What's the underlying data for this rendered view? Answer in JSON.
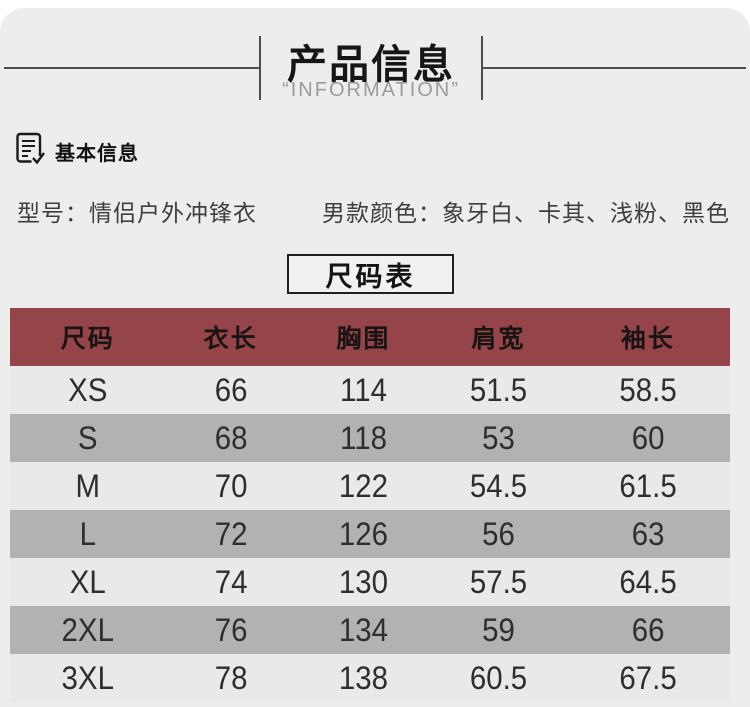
{
  "header": {
    "title": "产品信息",
    "subtitle": "“INFORMATION”"
  },
  "basic_info": {
    "section_title": "基本信息",
    "model_label": "型号：情侣户外冲锋衣",
    "color_label": "男款颜色：象牙白、卡其、浅粉、黑色"
  },
  "size_chart": {
    "title": "尺码表",
    "columns": [
      "尺码",
      "衣长",
      "胸围",
      "肩宽",
      "袖长"
    ],
    "rows": [
      [
        "XS",
        "66",
        "114",
        "51.5",
        "58.5"
      ],
      [
        "S",
        "68",
        "118",
        "53",
        "60"
      ],
      [
        "M",
        "70",
        "122",
        "54.5",
        "61.5"
      ],
      [
        "L",
        "72",
        "126",
        "56",
        "63"
      ],
      [
        "XL",
        "74",
        "130",
        "57.5",
        "64.5"
      ],
      [
        "2XL",
        "76",
        "134",
        "59",
        "66"
      ],
      [
        "3XL",
        "78",
        "138",
        "60.5",
        "67.5"
      ]
    ]
  },
  "colors": {
    "page_bg": "#ededed",
    "line_color": "#4d4d4d",
    "table_header_bg": "#954449",
    "row_light": "#e9e9e9",
    "row_dark": "#b2b2b2"
  }
}
